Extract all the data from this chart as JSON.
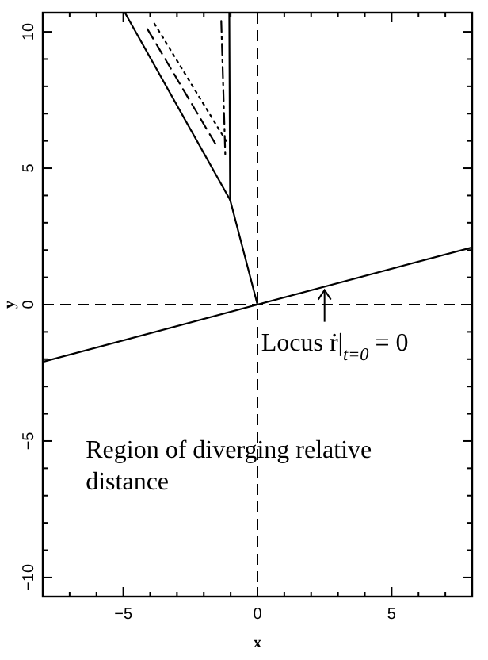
{
  "chart_data": {
    "type": "line",
    "xlabel": "x",
    "ylabel": "y",
    "xlim": [
      -8,
      8
    ],
    "ylim": [
      -10.7,
      10.7
    ],
    "xticks": [
      {
        "value": -8,
        "label": null
      },
      {
        "value": -7,
        "label": null
      },
      {
        "value": -6,
        "label": null
      },
      -5,
      {
        "value": -4,
        "label": null
      },
      {
        "value": -3,
        "label": null
      },
      {
        "value": -2,
        "label": null
      },
      {
        "value": -1,
        "label": null
      },
      0,
      {
        "value": 1,
        "label": null
      },
      {
        "value": 2,
        "label": null
      },
      {
        "value": 3,
        "label": null
      },
      {
        "value": 4,
        "label": null
      },
      5,
      {
        "value": 6,
        "label": null
      },
      {
        "value": 7,
        "label": null
      },
      {
        "value": 8,
        "label": null
      }
    ],
    "yticks": [
      -10,
      {
        "value": -9,
        "label": null
      },
      {
        "value": -8,
        "label": null
      },
      {
        "value": -7,
        "label": null
      },
      {
        "value": -6,
        "label": null
      },
      -5,
      {
        "value": -4,
        "label": null
      },
      {
        "value": -3,
        "label": null
      },
      {
        "value": -2,
        "label": null
      },
      {
        "value": -1,
        "label": null
      },
      0,
      {
        "value": 1,
        "label": null
      },
      {
        "value": 2,
        "label": null
      },
      {
        "value": 3,
        "label": null
      },
      {
        "value": 4,
        "label": null
      },
      5,
      {
        "value": 6,
        "label": null
      },
      {
        "value": 7,
        "label": null
      },
      {
        "value": 8,
        "label": null
      },
      {
        "value": 9,
        "label": null
      },
      10
    ],
    "grid": false,
    "series": [
      {
        "color": "#000000",
        "line_style": "solid",
        "x": [
          -8,
          8
        ],
        "values": [
          -2.1,
          2.1
        ]
      },
      {
        "color": "#000000",
        "line_style": "solid",
        "x": [
          -4.94,
          -1.02,
          0
        ],
        "values": [
          10.7,
          3.84,
          0
        ]
      },
      {
        "color": "#000000",
        "line_style": "solid",
        "x": [
          -1.02,
          -1.05
        ],
        "values": [
          3.84,
          10.7
        ]
      },
      {
        "color": "#000000",
        "line_style": "dashed",
        "x": [
          -4.1,
          -1.45
        ],
        "values": [
          10.1,
          5.7
        ]
      },
      {
        "color": "#000000",
        "line_style": "dotted",
        "x": [
          -3.84,
          -1.17
        ],
        "values": [
          10.3,
          6.0
        ]
      },
      {
        "color": "#000000",
        "line_style": "dashdot",
        "x": [
          -1.35,
          -1.2
        ],
        "values": [
          10.4,
          5.5
        ]
      }
    ],
    "ref_lines": [
      {
        "axis": "x",
        "value": 0,
        "line_style": "dashed",
        "color": "#000000"
      },
      {
        "axis": "y",
        "value": 0,
        "line_style": "dashed",
        "color": "#000000"
      }
    ],
    "annotations": [
      {
        "text": "Locus ṙ|$_{t=0}$ = 0",
        "x": 2.5,
        "y": 0.65
      },
      "Region of diverging relative distance"
    ]
  }
}
